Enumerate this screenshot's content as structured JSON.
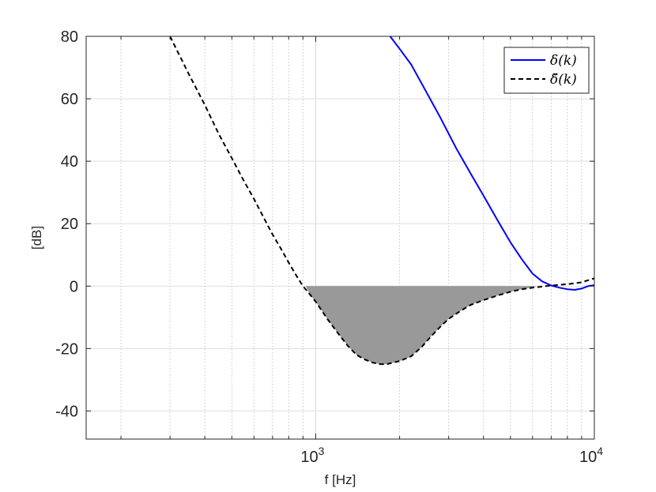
{
  "chart_data": {
    "type": "line",
    "xlabel": "f [Hz]",
    "ylabel": "[dB]",
    "xscale": "log",
    "xlim": [
      150,
      10000
    ],
    "ylim": [
      -49,
      80
    ],
    "grid": true,
    "minor_grid_x": true,
    "legend_position": "top-right",
    "x_ticks": [
      {
        "value": 1000,
        "base": "10",
        "exp": "3"
      },
      {
        "value": 10000,
        "base": "10",
        "exp": "4"
      }
    ],
    "y_ticks": [
      {
        "value": -40,
        "label": "-40"
      },
      {
        "value": -20,
        "label": "-20"
      },
      {
        "value": 0,
        "label": "0"
      },
      {
        "value": 20,
        "label": "20"
      },
      {
        "value": 40,
        "label": "40"
      },
      {
        "value": 60,
        "label": "60"
      },
      {
        "value": 80,
        "label": "80"
      }
    ],
    "series": [
      {
        "name": "δ(k)",
        "color": "#0000ff",
        "style": "solid",
        "x": [
          1850,
          2000,
          2200,
          2500,
          2800,
          3200,
          3600,
          4000,
          4500,
          5000,
          5500,
          6000,
          6500,
          7000,
          7500,
          8000,
          8500,
          9000,
          9500,
          10000
        ],
        "y": [
          80,
          76,
          71,
          62,
          54,
          44,
          36,
          29,
          21,
          14,
          8.5,
          4,
          1.5,
          0.2,
          -0.5,
          -1,
          -1.2,
          -0.8,
          0,
          0.3
        ]
      },
      {
        "name": "δ̌(k)",
        "color": "#000000",
        "style": "dashed",
        "x": [
          300,
          350,
          400,
          450,
          500,
          550,
          600,
          650,
          700,
          750,
          800,
          850,
          900,
          950,
          1000,
          1100,
          1200,
          1300,
          1400,
          1500,
          1600,
          1700,
          1800,
          1900,
          2000,
          2200,
          2400,
          2600,
          2800,
          3000,
          3300,
          3600,
          4000,
          4500,
          5000,
          5500,
          6000,
          7000,
          8000,
          9000,
          10000
        ],
        "y": [
          80,
          68,
          58,
          48.5,
          41,
          34,
          28,
          22,
          16.5,
          12,
          7.5,
          3.5,
          0,
          -2.5,
          -5,
          -10.5,
          -15,
          -19,
          -22,
          -23.5,
          -24.5,
          -25,
          -25,
          -24.5,
          -24,
          -22.5,
          -19.5,
          -16,
          -13,
          -10.5,
          -8,
          -6,
          -4.5,
          -3,
          -1.8,
          -1,
          -0.5,
          0.2,
          0.6,
          1.2,
          2.5
        ]
      }
    ],
    "shaded_region": {
      "color": "#999999",
      "x_from": 920,
      "x_to": 6200,
      "between": "dashed series and y=0"
    }
  }
}
